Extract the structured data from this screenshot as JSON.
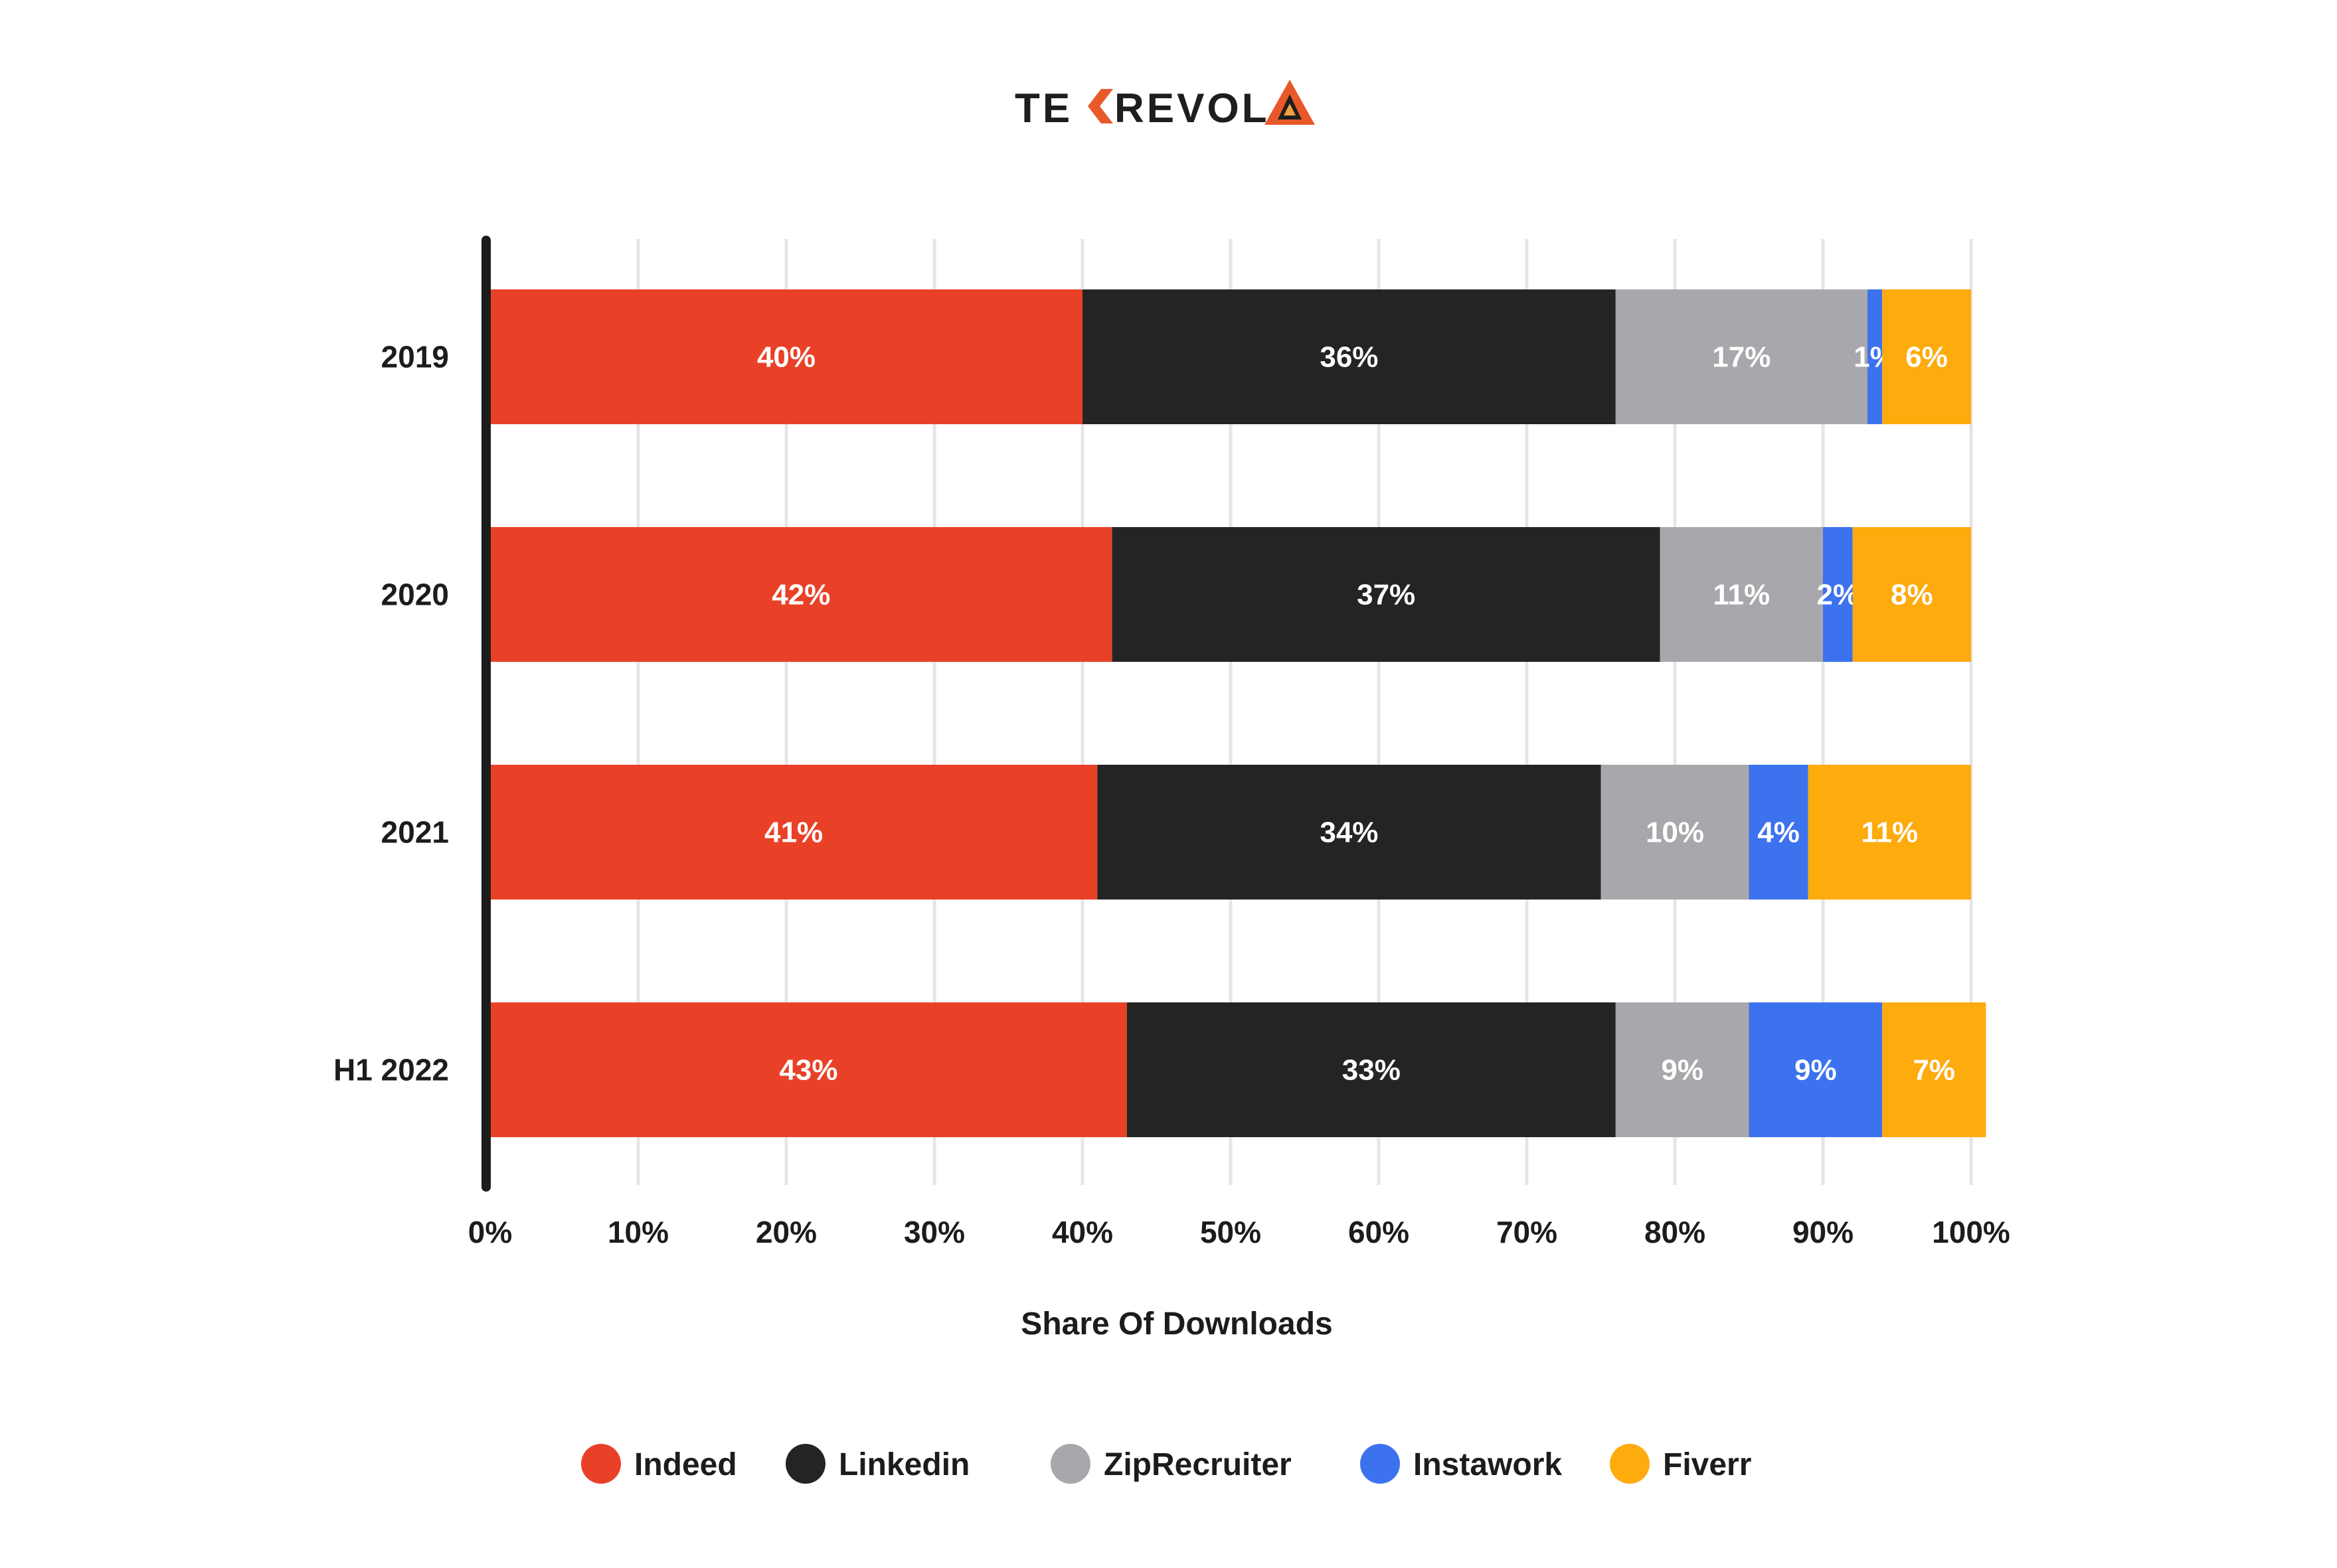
{
  "brand": {
    "name_left": "TE",
    "name_right": "REVOL",
    "accent": "#e8592a"
  },
  "chart_data": {
    "type": "bar",
    "orientation": "horizontal",
    "stacked": true,
    "categories": [
      "2019",
      "2020",
      "2021",
      "H1 2022"
    ],
    "series": [
      {
        "name": "Indeed",
        "color": "#e84127",
        "values": [
          40,
          42,
          41,
          43
        ]
      },
      {
        "name": "Linkedin",
        "color": "#252425",
        "values": [
          36,
          37,
          34,
          33
        ]
      },
      {
        "name": "ZipRecruiter",
        "color": "#a8a7ab",
        "values": [
          17,
          11,
          10,
          9
        ]
      },
      {
        "name": "Instawork",
        "color": "#3d72ee",
        "values": [
          1,
          2,
          4,
          9
        ]
      },
      {
        "name": "Fiverr",
        "color": "#fdab0d",
        "values": [
          6,
          8,
          11,
          7
        ]
      }
    ],
    "segment_labels": [
      [
        "40%",
        "36%",
        "17%",
        "1%",
        "6%"
      ],
      [
        "42%",
        "37%",
        "11%",
        "2%",
        "8%"
      ],
      [
        "41%",
        "34%",
        "10%",
        "4%",
        "11%"
      ],
      [
        "43%",
        "33%",
        "9%",
        "9%",
        "7%"
      ]
    ],
    "xlabel": "Share Of Downloads",
    "xlim": [
      0,
      100
    ],
    "xticks": [
      "0%",
      "10%",
      "20%",
      "30%",
      "40%",
      "50%",
      "60%",
      "70%",
      "80%",
      "90%",
      "100%"
    ],
    "grid": true,
    "legend_position": "bottom"
  }
}
